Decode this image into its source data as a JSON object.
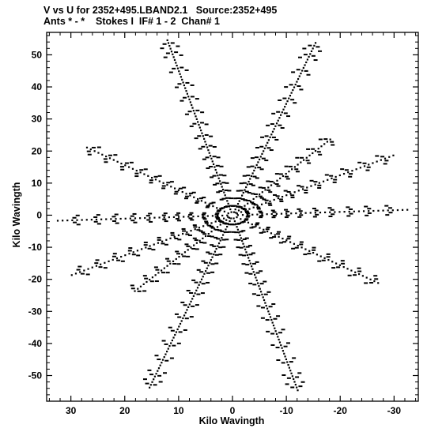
{
  "header": {
    "line1": "V vs U for 2352+495.LBAND2.1   Source:2352+495",
    "line2": "Ants * - *    Stokes I  IF# 1 - 2  Chan# 1"
  },
  "chart_data": {
    "type": "scatter",
    "title": "V vs U for 2352+495.LBAND2.1   Source:2352+495",
    "subtitle": "Ants * - *    Stokes I  IF# 1 - 2  Chan# 1",
    "xlabel": "Kilo Wavingth",
    "ylabel": "Kilo Wavingth",
    "xlim": [
      34.5,
      -34.5
    ],
    "ylim": [
      -58,
      57
    ],
    "x_reversed": true,
    "xticks": [
      30,
      20,
      10,
      0,
      -10,
      -20,
      -30
    ],
    "yticks": [
      50,
      40,
      30,
      20,
      10,
      0,
      -10,
      -20,
      -30,
      -40,
      -50
    ],
    "xtick_labels": [
      "30",
      "20",
      "10",
      "0",
      "-10",
      "-20",
      "-30"
    ],
    "ytick_labels": [
      "50",
      "40",
      "30",
      "20",
      "10",
      "0",
      "-10",
      "-20",
      "-30",
      "-40",
      "-50"
    ],
    "grid": false,
    "marker_color": "#000000",
    "description_of_points": "uv-coverage: snapshot tracks along six radial arms (±) of a Y-shaped array, with points symmetric about the origin",
    "series": [
      {
        "radial_arms": [
          {
            "angle_deg": 77.5,
            "max_radius_kwl": 56
          },
          {
            "angle_deg": 38.0,
            "max_radius_kwl": 35
          },
          {
            "angle_deg": 127.5,
            "max_radius_kwl": 30
          },
          {
            "angle_deg": -3.0,
            "max_radius_kwl": 33
          },
          {
            "angle_deg": 148.0,
            "max_radius_kwl": 36
          },
          {
            "angle_deg": 106.0,
            "max_radius_kwl": 56
          }
        ]
      }
    ]
  }
}
